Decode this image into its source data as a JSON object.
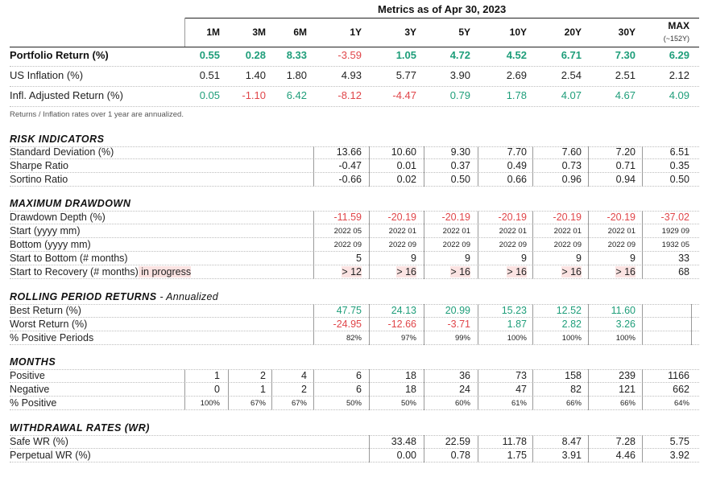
{
  "title": "Metrics as of Apr 30, 2023",
  "periods": [
    "1M",
    "3M",
    "6M",
    "1Y",
    "3Y",
    "5Y",
    "10Y",
    "20Y",
    "30Y",
    "MAX"
  ],
  "max_sub": "(~152Y)",
  "summary": {
    "rows": [
      {
        "label": "Portfolio Return (%)",
        "values": [
          "0.55",
          "0.28",
          "8.33",
          "-3.59",
          "1.05",
          "4.72",
          "4.52",
          "6.71",
          "7.30",
          "6.29"
        ],
        "tones": [
          "pos",
          "pos",
          "pos",
          "neg",
          "pos",
          "pos",
          "pos",
          "pos",
          "pos",
          "pos"
        ]
      },
      {
        "label": "US Inflation (%)",
        "values": [
          "0.51",
          "1.40",
          "1.80",
          "4.93",
          "5.77",
          "3.90",
          "2.69",
          "2.54",
          "2.51",
          "2.12"
        ],
        "tones": [
          "",
          "",
          "",
          "",
          "",
          "",
          "",
          "",
          "",
          ""
        ]
      },
      {
        "label": "Infl. Adjusted Return (%)",
        "values": [
          "0.05",
          "-1.10",
          "6.42",
          "-8.12",
          "-4.47",
          "0.79",
          "1.78",
          "4.07",
          "4.67",
          "4.09"
        ],
        "tones": [
          "pos",
          "neg",
          "pos",
          "neg",
          "neg",
          "pos",
          "pos",
          "pos",
          "pos",
          "pos"
        ]
      }
    ],
    "note": "Returns / Inflation rates over 1 year are annualized."
  },
  "risk": {
    "title": "RISK INDICATORS",
    "rows": [
      {
        "label": "Standard Deviation (%)",
        "values": [
          "",
          "",
          "",
          "13.66",
          "10.60",
          "9.30",
          "7.70",
          "7.60",
          "7.20",
          "6.51"
        ]
      },
      {
        "label": "Sharpe Ratio",
        "values": [
          "",
          "",
          "",
          "-0.47",
          "0.01",
          "0.37",
          "0.49",
          "0.73",
          "0.71",
          "0.35"
        ]
      },
      {
        "label": "Sortino Ratio",
        "values": [
          "",
          "",
          "",
          "-0.66",
          "0.02",
          "0.50",
          "0.66",
          "0.96",
          "0.94",
          "0.50"
        ]
      }
    ]
  },
  "drawdown": {
    "title": "MAXIMUM DRAWDOWN",
    "rows": [
      {
        "label": "Drawdown Depth (%)",
        "values": [
          "",
          "",
          "",
          "-11.59",
          "-20.19",
          "-20.19",
          "-20.19",
          "-20.19",
          "-20.19",
          "-37.02"
        ],
        "tone": "neg"
      },
      {
        "label": "Start (yyyy mm)",
        "values": [
          "",
          "",
          "",
          "2022 05",
          "2022 01",
          "2022 01",
          "2022 01",
          "2022 01",
          "2022 01",
          "1929 09"
        ],
        "small": true
      },
      {
        "label": "Bottom (yyyy mm)",
        "values": [
          "",
          "",
          "",
          "2022 09",
          "2022 09",
          "2022 09",
          "2022 09",
          "2022 09",
          "2022 09",
          "1932 05"
        ],
        "small": true
      },
      {
        "label": "Start to Bottom (# months)",
        "values": [
          "",
          "",
          "",
          "5",
          "9",
          "9",
          "9",
          "9",
          "9",
          "33"
        ]
      },
      {
        "label": "Start to Recovery (# months)",
        "label_highlight": "in progress",
        "values": [
          "",
          "",
          "",
          "> 12",
          "> 16",
          "> 16",
          "> 16",
          "> 16",
          "> 16",
          "68"
        ],
        "highlight": [
          false,
          false,
          false,
          true,
          true,
          true,
          true,
          true,
          true,
          false
        ]
      }
    ]
  },
  "rolling": {
    "title": "ROLLING PERIOD RETURNS",
    "annotation": "- Annualized",
    "rows": [
      {
        "label": "Best Return (%)",
        "values": [
          "",
          "",
          "",
          "47.75",
          "24.13",
          "20.99",
          "15.23",
          "12.52",
          "11.60",
          ""
        ],
        "tone": "pos"
      },
      {
        "label": "Worst Return (%)",
        "values": [
          "",
          "",
          "",
          "-24.95",
          "-12.66",
          "-3.71",
          "1.87",
          "2.82",
          "3.26",
          ""
        ],
        "tones": [
          "",
          "",
          "",
          "neg",
          "neg",
          "neg",
          "pos",
          "pos",
          "pos",
          ""
        ]
      },
      {
        "label": "% Positive Periods",
        "values": [
          "",
          "",
          "",
          "82%",
          "97%",
          "99%",
          "100%",
          "100%",
          "100%",
          ""
        ],
        "small": true
      }
    ]
  },
  "months": {
    "title": "MONTHS",
    "rows": [
      {
        "label": "Positive",
        "values": [
          "1",
          "2",
          "4",
          "6",
          "18",
          "36",
          "73",
          "158",
          "239",
          "1166"
        ]
      },
      {
        "label": "Negative",
        "values": [
          "0",
          "1",
          "2",
          "6",
          "18",
          "24",
          "47",
          "82",
          "121",
          "662"
        ]
      },
      {
        "label": "% Positive",
        "values": [
          "100%",
          "67%",
          "67%",
          "50%",
          "50%",
          "60%",
          "61%",
          "66%",
          "66%",
          "64%"
        ],
        "small": true
      }
    ]
  },
  "withdrawal": {
    "title": "WITHDRAWAL RATES (WR)",
    "rows": [
      {
        "label": "Safe WR (%)",
        "values": [
          "",
          "",
          "",
          "",
          "33.48",
          "22.59",
          "11.78",
          "8.47",
          "7.28",
          "5.75"
        ]
      },
      {
        "label": "Perpetual WR (%)",
        "values": [
          "",
          "",
          "",
          "",
          "0.00",
          "0.78",
          "1.75",
          "3.91",
          "4.46",
          "3.92"
        ]
      }
    ]
  },
  "colors": {
    "positive": "#1f9e7a",
    "negative": "#e0464a",
    "highlight": "#fbe3e2"
  }
}
